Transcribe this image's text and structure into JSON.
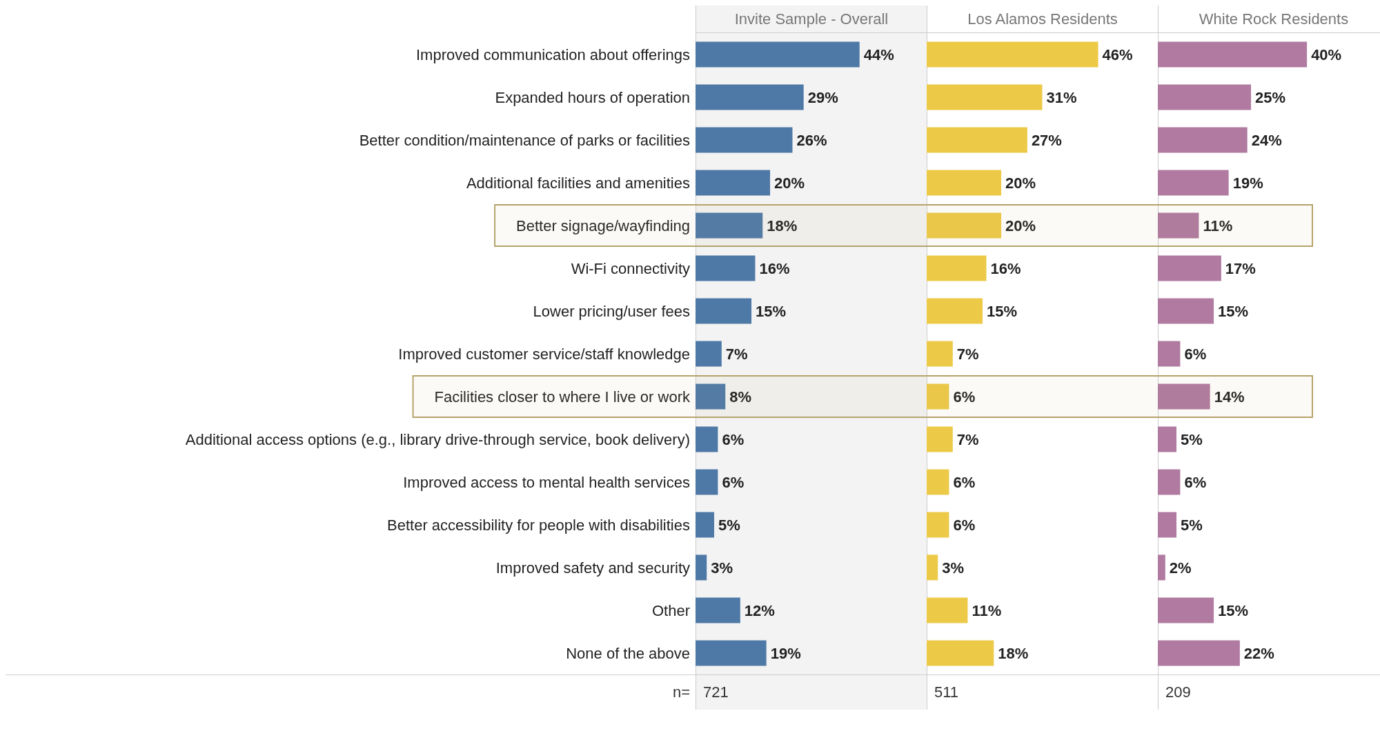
{
  "chart_data": [
    {
      "type": "bar",
      "orientation": "horizontal",
      "title": "Invite Sample - Overall",
      "tick_labels": "y",
      "xlim": [
        0,
        62
      ],
      "color": "#4e79a7",
      "categories": [
        "Improved communication about offerings",
        "Expanded hours of operation",
        "Better condition/maintenance of parks or facilities",
        "Additional facilities and amenities",
        "Better signage/wayfinding",
        "Wi-Fi connectivity",
        "Lower pricing/user fees",
        "Improved customer service/staff knowledge",
        "Facilities closer to where I live or work",
        "Additional access options (e.g., library drive-through service, book delivery)",
        "Improved access to mental health services",
        "Better accessibility for people with disabilities",
        "Improved safety and security",
        "Other",
        "None of the above"
      ],
      "values": [
        44,
        29,
        26,
        20,
        18,
        16,
        15,
        7,
        8,
        6,
        6,
        5,
        3,
        12,
        19
      ],
      "value_labels": [
        "44%",
        "29%",
        "26%",
        "20%",
        "18%",
        "16%",
        "15%",
        "7%",
        "8%",
        "6%",
        "6%",
        "5%",
        "3%",
        "12%",
        "19%"
      ],
      "bands": [
        {
          "axis": "y",
          "from": "Better signage/wayfinding",
          "to": "Better signage/wayfinding",
          "color": "#b5a36a"
        },
        {
          "axis": "y",
          "from": "Facilities closer to where I live or work",
          "to": "Facilities closer to where I live or work",
          "color": "#b5a36a"
        }
      ],
      "annotations": [
        "n=",
        "721"
      ]
    },
    {
      "type": "bar",
      "orientation": "horizontal",
      "title": "Los Alamos Residents",
      "tick_labels": false,
      "xlim": [
        0,
        62
      ],
      "color": "#edc948",
      "categories": [
        "Improved communication about offerings",
        "Expanded hours of operation",
        "Better condition/maintenance of parks or facilities",
        "Additional facilities and amenities",
        "Better signage/wayfinding",
        "Wi-Fi connectivity",
        "Lower pricing/user fees",
        "Improved customer service/staff knowledge",
        "Facilities closer to where I live or work",
        "Additional access options (e.g., library drive-through service, book delivery)",
        "Improved access to mental health services",
        "Better accessibility for people with disabilities",
        "Improved safety and security",
        "Other",
        "None of the above"
      ],
      "values": [
        46,
        31,
        27,
        20,
        20,
        16,
        15,
        7,
        6,
        7,
        6,
        6,
        3,
        11,
        18
      ],
      "value_labels": [
        "46%",
        "31%",
        "27%",
        "20%",
        "20%",
        "16%",
        "15%",
        "7%",
        "6%",
        "7%",
        "6%",
        "6%",
        "3%",
        "11%",
        "18%"
      ],
      "annotations": [
        "511"
      ]
    },
    {
      "type": "bar",
      "orientation": "horizontal",
      "title": "White Rock Residents",
      "tick_labels": false,
      "xlim": [
        0,
        62
      ],
      "color": "#b07aa1",
      "categories": [
        "Improved communication about offerings",
        "Expanded hours of operation",
        "Better condition/maintenance of parks or facilities",
        "Additional facilities and amenities",
        "Better signage/wayfinding",
        "Wi-Fi connectivity",
        "Lower pricing/user fees",
        "Improved customer service/staff knowledge",
        "Facilities closer to where I live or work",
        "Additional access options (e.g., library drive-through service, book delivery)",
        "Improved access to mental health services",
        "Better accessibility for people with disabilities",
        "Improved safety and security",
        "Other",
        "None of the above"
      ],
      "values": [
        40,
        25,
        24,
        19,
        11,
        17,
        15,
        6,
        14,
        5,
        6,
        5,
        2,
        15,
        22
      ],
      "value_labels": [
        "40%",
        "25%",
        "24%",
        "19%",
        "11%",
        "17%",
        "15%",
        "6%",
        "14%",
        "5%",
        "6%",
        "5%",
        "2%",
        "15%",
        "22%"
      ],
      "annotations": [
        "209"
      ]
    }
  ]
}
